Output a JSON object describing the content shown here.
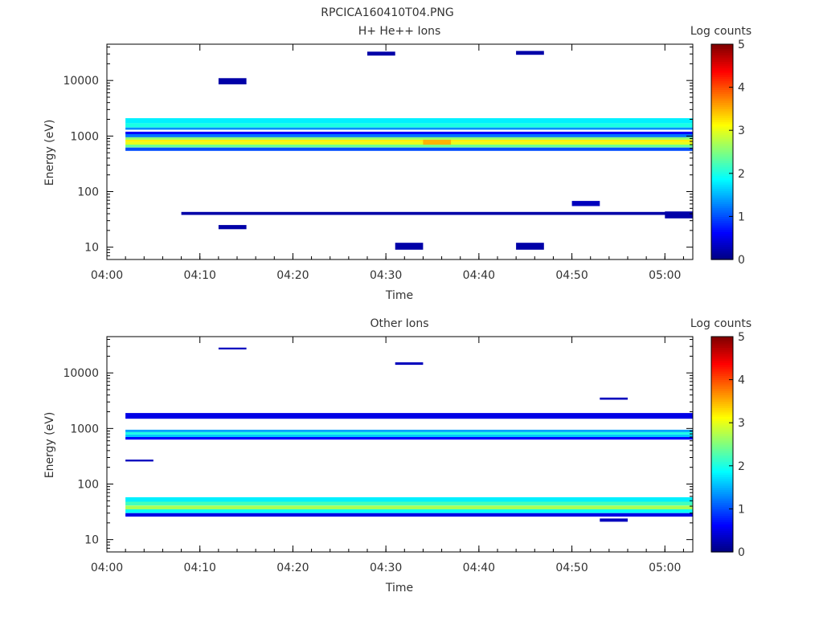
{
  "file_title": "RPCICA160410T04.PNG",
  "chart_data": [
    {
      "type": "heatmap",
      "title": "H+ He++ Ions",
      "xlabel": "Time",
      "ylabel": "Energy (eV)",
      "x_ticks": [
        "04:00",
        "04:10",
        "04:20",
        "04:30",
        "04:40",
        "04:50",
        "05:00"
      ],
      "x_range": [
        "04:00",
        "05:03"
      ],
      "y_scale": "log",
      "y_ticks": [
        10,
        100,
        1000,
        10000
      ],
      "y_range": [
        6,
        45000
      ],
      "colorbar": {
        "label": "Log counts",
        "min": 0,
        "max": 5,
        "ticks": [
          0,
          1,
          2,
          3,
          4,
          5
        ]
      },
      "time_bins": [
        "04:02",
        "04:05",
        "04:08",
        "04:12",
        "04:15",
        "04:18",
        "04:21",
        "04:24",
        "04:27",
        "04:31",
        "04:34",
        "04:37",
        "04:40",
        "04:44",
        "04:47",
        "04:50",
        "04:53",
        "04:56",
        "05:00",
        "05:03"
      ],
      "cells": [
        {
          "t0": "04:02",
          "t1": "05:03",
          "e0": 1700,
          "e1": 2100,
          "v": 1.8
        },
        {
          "t0": "04:02",
          "t1": "05:03",
          "e0": 1420,
          "e1": 1700,
          "v": 2.0
        },
        {
          "t0": "04:02",
          "t1": "05:03",
          "e0": 1300,
          "e1": 1420,
          "v": 1.3
        },
        {
          "t0": "04:02",
          "t1": "05:03",
          "e0": 1080,
          "e1": 1200,
          "v": 0.6
        },
        {
          "t0": "04:02",
          "t1": "05:03",
          "e0": 950,
          "e1": 1080,
          "v": 1.2
        },
        {
          "t0": "04:02",
          "t1": "05:03",
          "e0": 860,
          "e1": 950,
          "v": 2.6
        },
        {
          "t0": "04:02",
          "t1": "05:03",
          "e0": 780,
          "e1": 860,
          "v": 3.2
        },
        {
          "t0": "04:02",
          "t1": "05:03",
          "e0": 700,
          "e1": 780,
          "v": 3.0
        },
        {
          "t0": "04:02",
          "t1": "05:03",
          "e0": 620,
          "e1": 700,
          "v": 2.4
        },
        {
          "t0": "04:02",
          "t1": "05:03",
          "e0": 540,
          "e1": 620,
          "v": 1.0
        },
        {
          "t0": "04:34",
          "t1": "04:37",
          "e0": 700,
          "e1": 860,
          "v": 3.5
        },
        {
          "t0": "04:12",
          "t1": "04:15",
          "e0": 8500,
          "e1": 11000,
          "v": 0.2
        },
        {
          "t0": "04:28",
          "t1": "04:31",
          "e0": 28000,
          "e1": 33000,
          "v": 0.2
        },
        {
          "t0": "04:44",
          "t1": "04:47",
          "e0": 29000,
          "e1": 34000,
          "v": 0.2
        },
        {
          "t0": "04:31",
          "t1": "04:34",
          "e0": 9,
          "e1": 12,
          "v": 0.2
        },
        {
          "t0": "04:44",
          "t1": "04:47",
          "e0": 9,
          "e1": 12,
          "v": 0.2
        },
        {
          "t0": "04:12",
          "t1": "04:15",
          "e0": 21,
          "e1": 25,
          "v": 0.2
        },
        {
          "t0": "04:08",
          "t1": "05:03",
          "e0": 38,
          "e1": 43,
          "v": 0.2
        },
        {
          "t0": "04:50",
          "t1": "04:53",
          "e0": 55,
          "e1": 68,
          "v": 0.3
        },
        {
          "t0": "05:00",
          "t1": "05:03",
          "e0": 33,
          "e1": 44,
          "v": 0.2
        }
      ]
    },
    {
      "type": "heatmap",
      "title": "Other Ions",
      "xlabel": "Time",
      "ylabel": "Energy (eV)",
      "x_ticks": [
        "04:00",
        "04:10",
        "04:20",
        "04:30",
        "04:40",
        "04:50",
        "05:00"
      ],
      "x_range": [
        "04:00",
        "05:03"
      ],
      "y_scale": "log",
      "y_ticks": [
        10,
        100,
        1000,
        10000
      ],
      "y_range": [
        6,
        45000
      ],
      "colorbar": {
        "label": "Log counts",
        "min": 0,
        "max": 5,
        "ticks": [
          0,
          1,
          2,
          3,
          4,
          5
        ]
      },
      "time_bins": [
        "04:02",
        "04:05",
        "04:08",
        "04:12",
        "04:15",
        "04:18",
        "04:21",
        "04:24",
        "04:27",
        "04:31",
        "04:34",
        "04:37",
        "04:40",
        "04:44",
        "04:47",
        "04:50",
        "04:53",
        "04:56",
        "05:00",
        "05:03"
      ],
      "cells": [
        {
          "t0": "04:02",
          "t1": "05:03",
          "e0": 1500,
          "e1": 1900,
          "v": 0.5
        },
        {
          "t0": "04:02",
          "t1": "05:03",
          "e0": 860,
          "e1": 950,
          "v": 1.4
        },
        {
          "t0": "04:02",
          "t1": "05:03",
          "e0": 780,
          "e1": 860,
          "v": 2.0
        },
        {
          "t0": "04:02",
          "t1": "05:03",
          "e0": 700,
          "e1": 780,
          "v": 1.6
        },
        {
          "t0": "04:02",
          "t1": "05:03",
          "e0": 630,
          "e1": 700,
          "v": 0.6
        },
        {
          "t0": "04:02",
          "t1": "05:03",
          "e0": 48,
          "e1": 58,
          "v": 1.8
        },
        {
          "t0": "04:02",
          "t1": "05:03",
          "e0": 41,
          "e1": 48,
          "v": 2.2
        },
        {
          "t0": "04:02",
          "t1": "05:03",
          "e0": 35,
          "e1": 41,
          "v": 2.7
        },
        {
          "t0": "04:02",
          "t1": "05:03",
          "e0": 30,
          "e1": 35,
          "v": 1.9
        },
        {
          "t0": "04:02",
          "t1": "05:03",
          "e0": 26,
          "e1": 30,
          "v": 0.5
        },
        {
          "t0": "04:12",
          "t1": "04:15",
          "e0": 26500,
          "e1": 28500,
          "v": 0.3
        },
        {
          "t0": "04:31",
          "t1": "04:34",
          "e0": 14000,
          "e1": 15500,
          "v": 0.3
        },
        {
          "t0": "04:02",
          "t1": "04:05",
          "e0": 255,
          "e1": 275,
          "v": 0.3
        },
        {
          "t0": "04:53",
          "t1": "04:56",
          "e0": 3300,
          "e1": 3600,
          "v": 0.3
        },
        {
          "t0": "04:53",
          "t1": "04:56",
          "e0": 21,
          "e1": 24,
          "v": 0.3
        }
      ]
    }
  ]
}
